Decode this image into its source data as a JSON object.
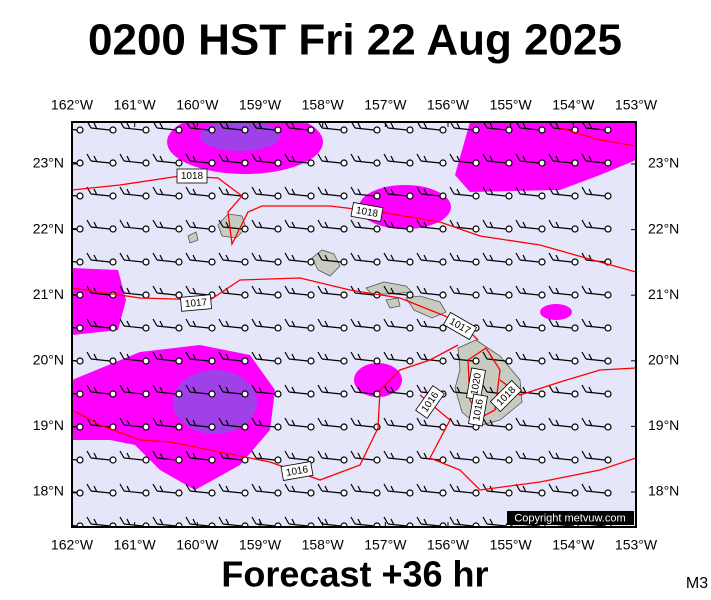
{
  "title": "0200 HST Fri 22 Aug 2025",
  "footer": "Forecast +36 hr",
  "corner_label": "M3",
  "copyright": "Copyright metvuw.com",
  "longitude_labels": [
    "162°W",
    "161°W",
    "160°W",
    "159°W",
    "158°W",
    "157°W",
    "156°W",
    "155°W",
    "154°W",
    "153°W"
  ],
  "latitude_labels": [
    "23°N",
    "22°N",
    "21°N",
    "20°N",
    "19°N",
    "18°N"
  ],
  "isobar_labels": [
    "1018",
    "1018",
    "1017",
    "1017",
    "1016",
    "1016",
    "1020",
    "1018",
    "1016"
  ]
}
